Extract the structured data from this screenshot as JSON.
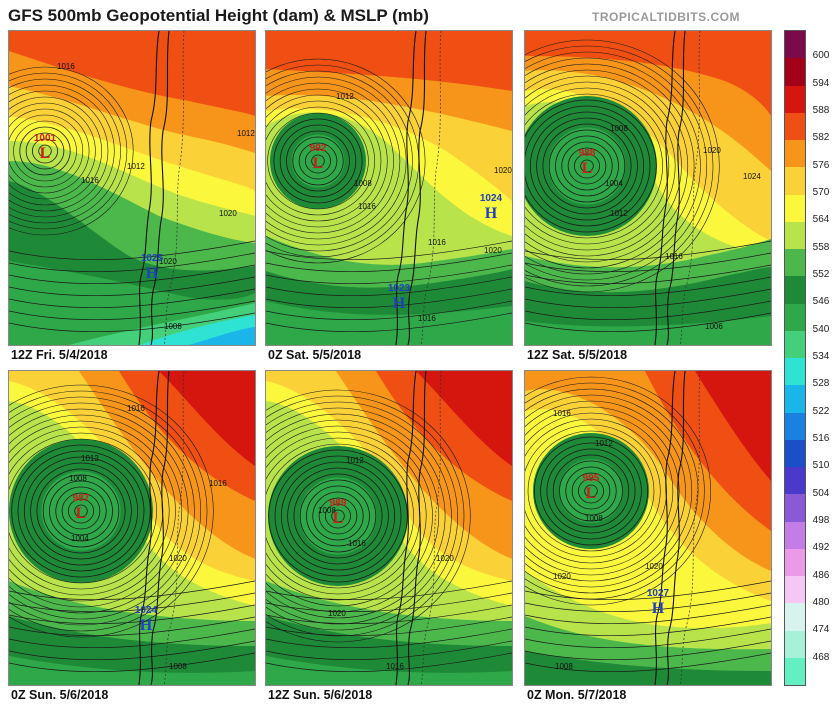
{
  "header": {
    "title": "GFS 500mb Geopotential Height (dam) & MSLP (mb)",
    "credit": "TROPICALTIDBITS.COM"
  },
  "panels": [
    {
      "caption": "12Z Fri. 5/4/2018",
      "systems": [
        {
          "kind": "low",
          "value": "1001"
        },
        {
          "kind": "high",
          "value": "1025"
        }
      ],
      "isobar_labels": [
        "1016",
        "1012",
        "1012",
        "1016",
        "1020",
        "1020",
        "1008"
      ]
    },
    {
      "caption": "0Z Sat. 5/5/2018",
      "systems": [
        {
          "kind": "low",
          "value": "992"
        },
        {
          "kind": "high",
          "value": "1024"
        },
        {
          "kind": "high",
          "value": "1023"
        }
      ],
      "isobar_labels": [
        "1012",
        "1008",
        "1016",
        "1020",
        "1020",
        "1016",
        "1016"
      ]
    },
    {
      "caption": "12Z Sat. 5/5/2018",
      "systems": [
        {
          "kind": "low",
          "value": "988"
        }
      ],
      "isobar_labels": [
        "1008",
        "1012",
        "1004",
        "1020",
        "1024",
        "1016",
        "1006"
      ]
    },
    {
      "caption": "0Z Sun. 5/6/2018",
      "systems": [
        {
          "kind": "low",
          "value": "987"
        },
        {
          "kind": "high",
          "value": "1024"
        }
      ],
      "isobar_labels": [
        "1016",
        "1012",
        "1008",
        "1004",
        "1016",
        "1020",
        "1008"
      ]
    },
    {
      "caption": "12Z Sun. 5/6/2018",
      "systems": [
        {
          "kind": "low",
          "value": "989"
        }
      ],
      "isobar_labels": [
        "1012",
        "1008",
        "1016",
        "1020",
        "1020",
        "1016"
      ]
    },
    {
      "caption": "0Z Mon. 5/7/2018",
      "systems": [
        {
          "kind": "low",
          "value": "995"
        },
        {
          "kind": "high",
          "value": "1027"
        }
      ],
      "isobar_labels": [
        "1016",
        "1012",
        "1008",
        "1020",
        "1020",
        "1008"
      ]
    }
  ],
  "colorbar": {
    "levels": [
      "600",
      "594",
      "588",
      "582",
      "576",
      "570",
      "564",
      "558",
      "552",
      "546",
      "540",
      "534",
      "528",
      "522",
      "516",
      "510",
      "504",
      "498",
      "492",
      "486",
      "480",
      "474",
      "468"
    ],
    "colors": [
      "#7a0a4a",
      "#a3001a",
      "#d4160f",
      "#ef4f12",
      "#f6951a",
      "#fad137",
      "#fbf73c",
      "#b8e34a",
      "#4cb84b",
      "#1e8a37",
      "#2ea848",
      "#44d07a",
      "#2fe3d4",
      "#1ab6ea",
      "#1a82de",
      "#1a4fc8",
      "#4a3acb",
      "#8a5ad6",
      "#c27ee6",
      "#ea9ae7",
      "#f6c6f4",
      "#d8f2ee",
      "#a7f1d8",
      "#63efc1"
    ]
  }
}
